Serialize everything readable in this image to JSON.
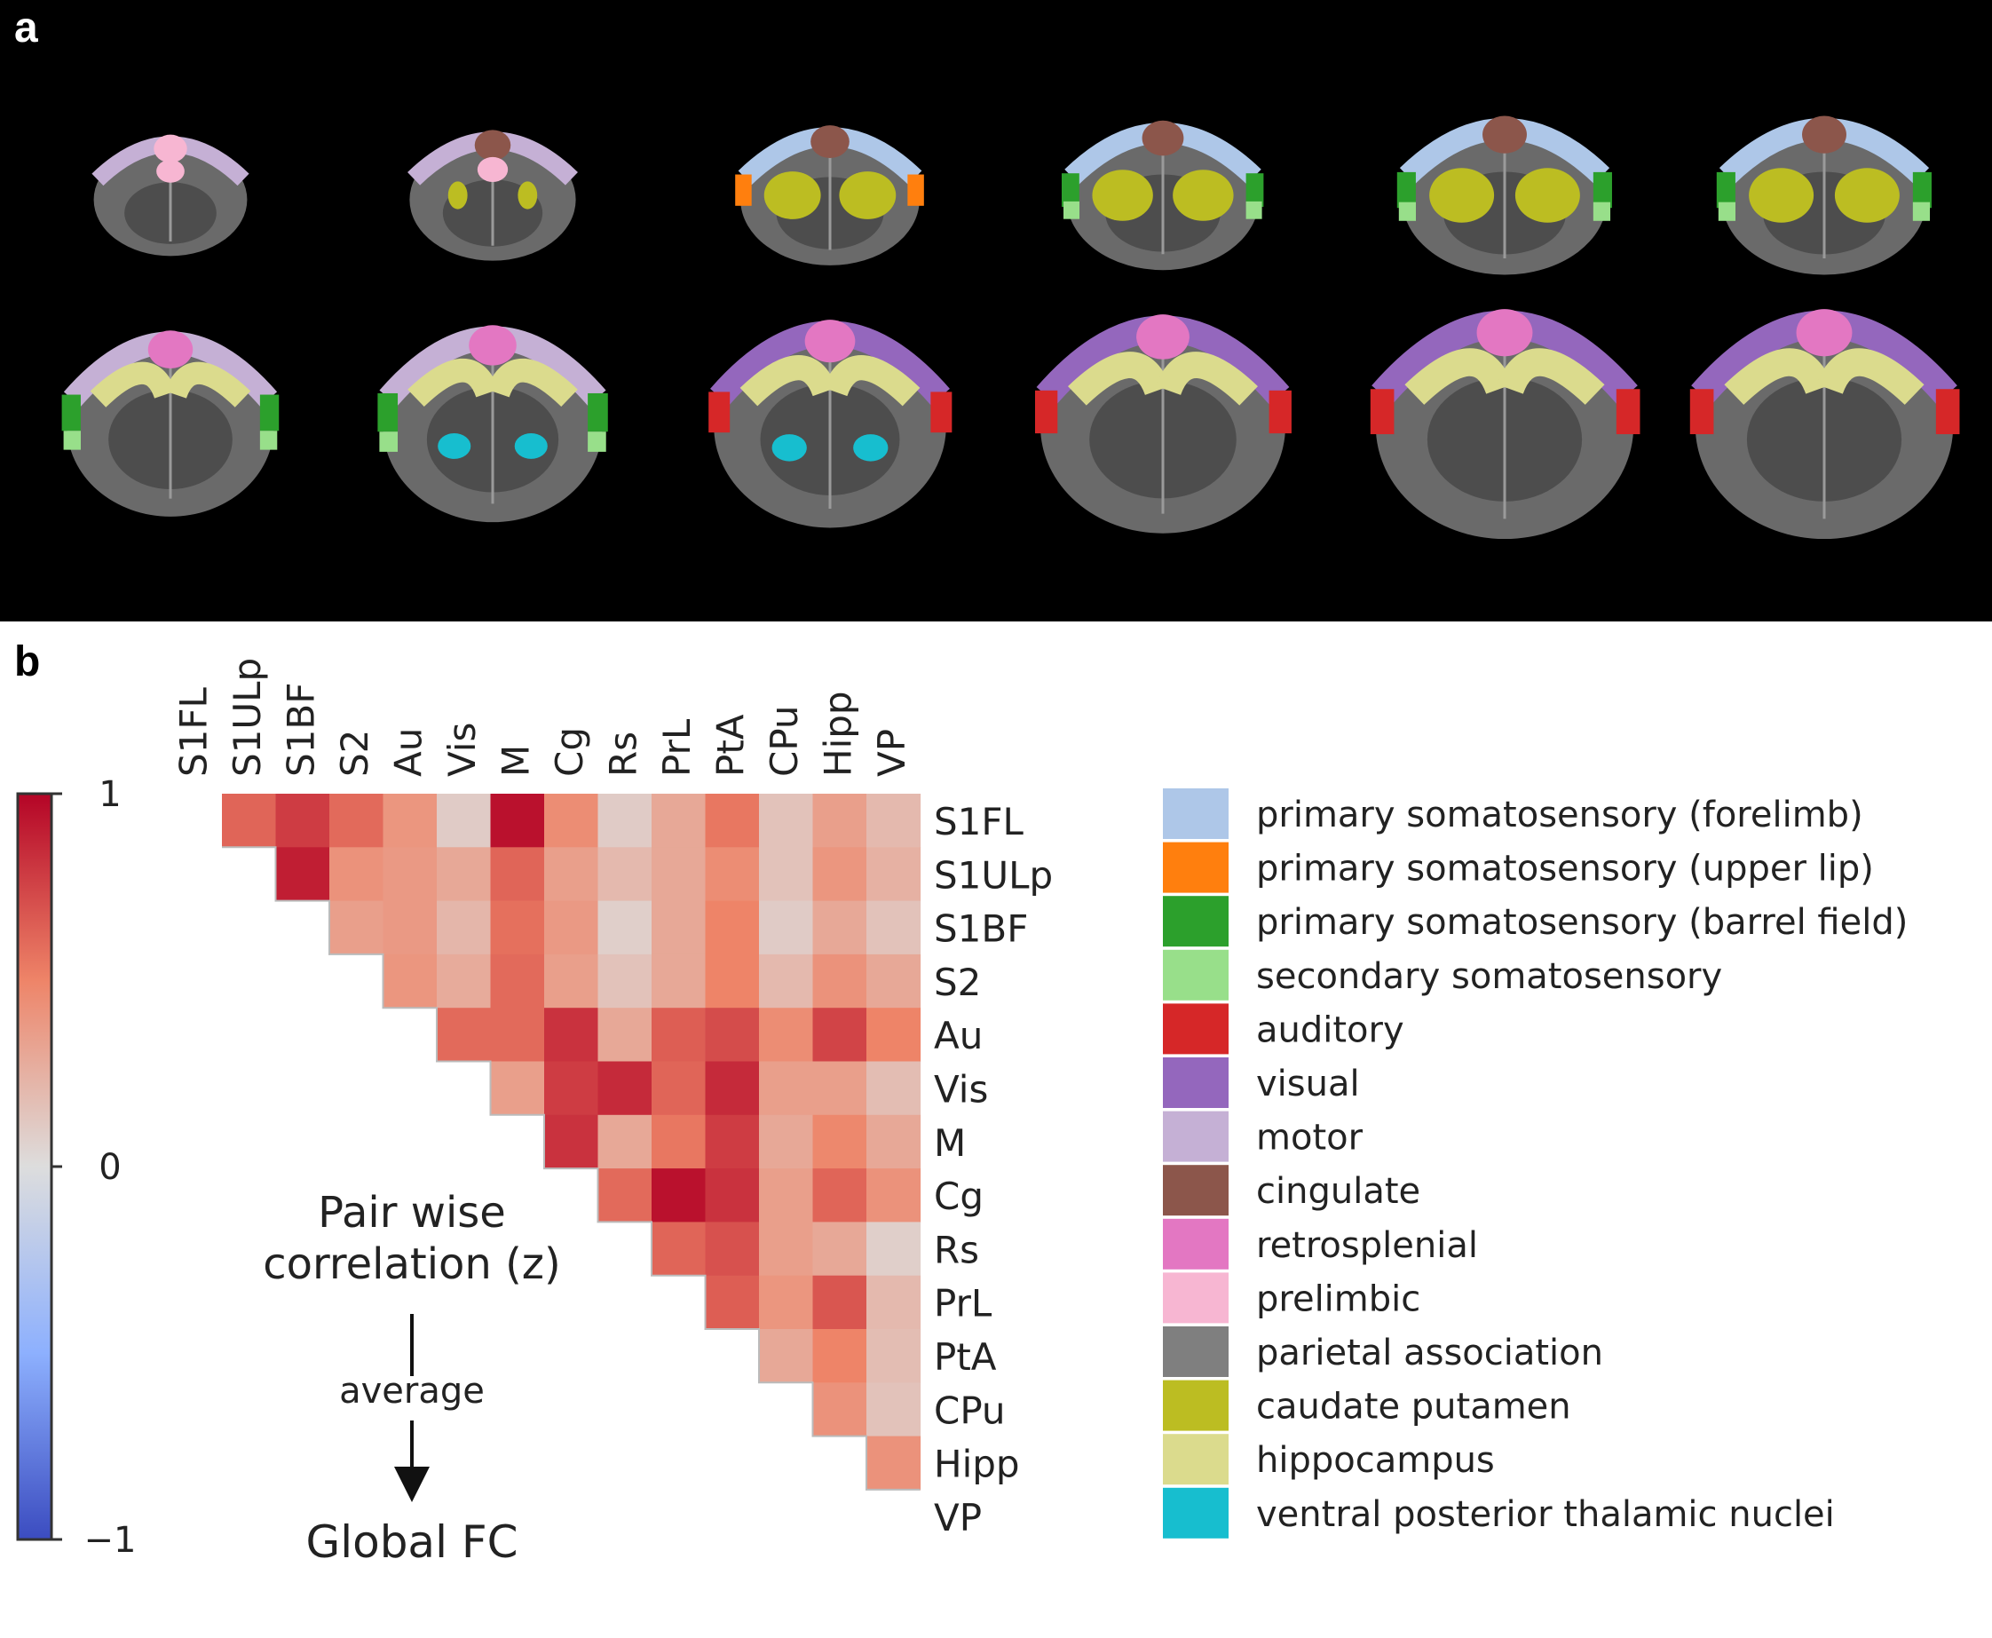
{
  "panels": {
    "a_label": "a",
    "b_label": "b"
  },
  "brain_panel": {
    "rows": 2,
    "cols": 6,
    "region_colors": {
      "forelimb": "#aec7e8",
      "upper_lip": "#ff7f0e",
      "barrel": "#2ca02c",
      "s2": "#98df8a",
      "auditory": "#d62728",
      "visual": "#9467bd",
      "motor": "#c5b0d5",
      "cingulate": "#8c564b",
      "retrosplenial": "#e377c2",
      "prelimbic": "#f7b6d2",
      "caudate": "#bcbd22",
      "hippocampus": "#dbdb8d",
      "vp": "#17becf"
    }
  },
  "chart_data": {
    "type": "heatmap",
    "title": "",
    "colorbar": {
      "ticks": [
        "1",
        "0",
        "−1"
      ],
      "vmin": -1,
      "vmax": 1
    },
    "rows": [
      "S1FL",
      "S1ULp",
      "S1BF",
      "S2",
      "Au",
      "Vis",
      "M",
      "Cg",
      "Rs",
      "PrL",
      "PtA",
      "CPu",
      "Hipp",
      "VP"
    ],
    "cols": [
      "S1FL",
      "S1ULp",
      "S1BF",
      "S2",
      "Au",
      "Vis",
      "M",
      "Cg",
      "Rs",
      "PrL",
      "PtA",
      "CPu",
      "Hipp",
      "VP"
    ],
    "lower_triangle_values": [
      [
        0.62
      ],
      [
        0.78,
        0.9
      ],
      [
        0.6,
        0.42,
        0.35
      ],
      [
        0.4,
        0.38,
        0.38,
        0.4
      ],
      [
        0.1,
        0.3,
        0.22,
        0.28,
        0.6
      ],
      [
        0.95,
        0.62,
        0.58,
        0.6,
        0.6,
        0.35
      ],
      [
        0.45,
        0.35,
        0.38,
        0.35,
        0.82,
        0.78,
        0.82
      ],
      [
        0.1,
        0.2,
        0.08,
        0.15,
        0.3,
        0.85,
        0.3,
        0.6
      ],
      [
        0.3,
        0.3,
        0.3,
        0.3,
        0.65,
        0.62,
        0.55,
        0.95,
        0.62
      ],
      [
        0.55,
        0.45,
        0.5,
        0.5,
        0.72,
        0.85,
        0.78,
        0.82,
        0.7,
        0.65
      ],
      [
        0.15,
        0.15,
        0.1,
        0.2,
        0.45,
        0.35,
        0.3,
        0.35,
        0.35,
        0.4,
        0.3
      ],
      [
        0.35,
        0.4,
        0.3,
        0.42,
        0.75,
        0.35,
        0.48,
        0.62,
        0.3,
        0.68,
        0.5,
        0.42
      ],
      [
        0.2,
        0.25,
        0.15,
        0.3,
        0.5,
        0.18,
        0.3,
        0.42,
        0.08,
        0.2,
        0.18,
        0.15,
        0.42
      ]
    ],
    "annotation": {
      "line1": "Pair wise",
      "line2": "correlation (z)",
      "arrow_label": "average",
      "result": "Global FC"
    }
  },
  "legend": [
    {
      "color": "#aec7e8",
      "label": "primary somatosensory (forelimb)"
    },
    {
      "color": "#ff7f0e",
      "label": "primary somatosensory (upper lip)"
    },
    {
      "color": "#2ca02c",
      "label": "primary somatosensory (barrel field)"
    },
    {
      "color": "#98df8a",
      "label": "secondary somatosensory"
    },
    {
      "color": "#d62728",
      "label": "auditory"
    },
    {
      "color": "#9467bd",
      "label": "visual"
    },
    {
      "color": "#c5b0d5",
      "label": "motor"
    },
    {
      "color": "#8c564b",
      "label": "cingulate"
    },
    {
      "color": "#e377c2",
      "label": "retrosplenial"
    },
    {
      "color": "#f7b6d2",
      "label": "prelimbic"
    },
    {
      "color": "#7f7f7f",
      "label": "parietal association"
    },
    {
      "color": "#bcbd22",
      "label": "caudate putamen"
    },
    {
      "color": "#dbdb8d",
      "label": "hippocampus"
    },
    {
      "color": "#17becf",
      "label": "ventral posterior thalamic nuclei"
    }
  ]
}
